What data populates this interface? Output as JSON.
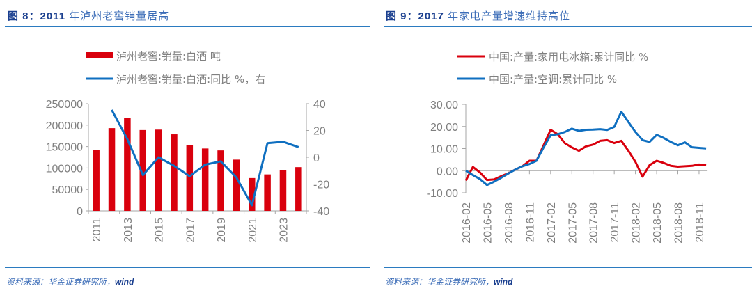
{
  "left": {
    "figure_no": "图 8：2011",
    "title_rest": " 年泸州老窖销量居高",
    "source_prefix": "资料来源：华金证券研究所，",
    "source_suffix": "wind"
  },
  "right": {
    "figure_no": "图 9：2017",
    "title_rest": " 年家电产量增速维持高位",
    "source_prefix": "资料来源：华金证券研究所，",
    "source_suffix": "wind"
  },
  "colors": {
    "red": "#d9000d",
    "blue": "#0f6fc0",
    "axis": "#a6a6a6",
    "rule": "#2b7bc0"
  },
  "chart_data": [
    {
      "type": "bar+line",
      "title": "2011 年泸州老窖销量居高",
      "categories": [
        "2011",
        "2012",
        "2013",
        "2014",
        "2015",
        "2016",
        "2017",
        "2018",
        "2019",
        "2020",
        "2021",
        "2022",
        "2023",
        "2024"
      ],
      "tick_labels": [
        "2011",
        "2013",
        "2015",
        "2017",
        "2019",
        "2021",
        "2023"
      ],
      "series": [
        {
          "name": "泸州老窖:销量:白酒 吨",
          "type": "bar",
          "axis": "left",
          "values": [
            142000,
            193000,
            217500,
            188500,
            189500,
            178500,
            153000,
            145500,
            141000,
            119500,
            76500,
            85000,
            95500,
            102000
          ]
        },
        {
          "name": "泸州老窖:销量:白酒:同比 %，右",
          "type": "line",
          "axis": "right",
          "values": [
            null,
            35.4,
            13.5,
            -13.3,
            0.0,
            -6.4,
            -14.2,
            -5.5,
            -3.0,
            -15.0,
            -35.8,
            10.5,
            11.6,
            7.6
          ]
        }
      ],
      "left_axis": {
        "ylim": [
          0,
          250000
        ],
        "ticks": [
          "0",
          "50000",
          "100000",
          "150000",
          "200000",
          "250000"
        ]
      },
      "right_axis": {
        "ylim": [
          -40,
          40
        ],
        "ticks": [
          "-40",
          "-20",
          "0",
          "20",
          "40"
        ]
      },
      "legend_position": "top",
      "grid": false
    },
    {
      "type": "line",
      "title": "2017 年家电产量增速维持高位",
      "x": [
        "2016-02",
        "2016-03",
        "2016-04",
        "2016-05",
        "2016-06",
        "2016-07",
        "2016-08",
        "2016-09",
        "2016-10",
        "2016-11",
        "2016-12",
        "2017-01",
        "2017-02",
        "2017-03",
        "2017-04",
        "2017-05",
        "2017-06",
        "2017-07",
        "2017-08",
        "2017-09",
        "2017-10",
        "2017-11",
        "2017-12",
        "2018-01",
        "2018-02",
        "2018-03",
        "2018-04",
        "2018-05",
        "2018-06",
        "2018-07",
        "2018-08",
        "2018-09",
        "2018-10",
        "2018-11",
        "2018-12"
      ],
      "tick_labels": [
        "2016-02",
        "2016-05",
        "2016-08",
        "2016-11",
        "2017-02",
        "2017-05",
        "2017-08",
        "2017-11",
        "2018-02",
        "2018-05",
        "2018-08",
        "2018-11"
      ],
      "series": [
        {
          "name": "中国:产量:家用电冰箱:累计同比 %",
          "color": "red",
          "values": [
            -4.5,
            1.7,
            -0.8,
            -4.2,
            -4.0,
            -2.5,
            -1.2,
            0.5,
            2.0,
            4.5,
            4.5,
            11.5,
            18.5,
            16.5,
            12.5,
            10.5,
            9.0,
            11.0,
            11.8,
            13.5,
            13.8,
            12.5,
            13.5,
            9.0,
            4.0,
            -2.7,
            2.5,
            4.5,
            3.5,
            2.2,
            1.8,
            2.0,
            2.2,
            2.8,
            2.5
          ]
        },
        {
          "name": "中国:产量:空调:累计同比 %",
          "color": "blue",
          "values": [
            0.0,
            -2.0,
            -3.8,
            -6.5,
            -5.0,
            -3.2,
            -1.3,
            0.5,
            2.0,
            3.0,
            4.5,
            10.5,
            16.0,
            16.5,
            17.5,
            19.0,
            18.0,
            18.5,
            18.6,
            18.8,
            18.4,
            19.8,
            26.7,
            22.0,
            17.5,
            13.8,
            13.0,
            16.2,
            14.8,
            13.0,
            11.5,
            12.8,
            10.6,
            10.3,
            10.1
          ]
        }
      ],
      "ylim": [
        -10,
        30
      ],
      "y_ticks": [
        "-10.00",
        "0.00",
        "10.00",
        "20.00",
        "30.00"
      ],
      "legend_position": "top",
      "grid": false
    }
  ]
}
